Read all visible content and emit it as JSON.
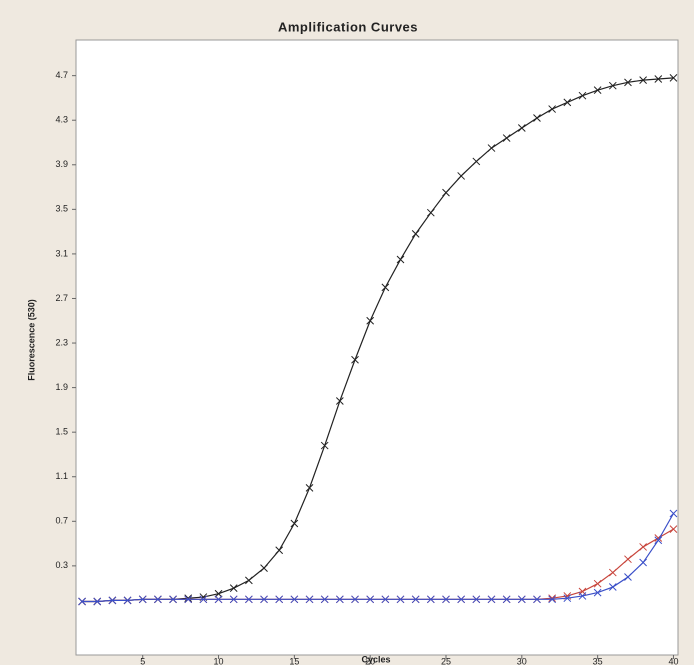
{
  "chart_data": {
    "type": "line",
    "title": "Amplification Curves",
    "x_label": "Cycles",
    "y_label": "Fluorescence (530)",
    "x": [
      1,
      2,
      3,
      4,
      5,
      6,
      7,
      8,
      9,
      10,
      11,
      12,
      13,
      14,
      15,
      16,
      17,
      18,
      19,
      20,
      21,
      22,
      23,
      24,
      25,
      26,
      27,
      28,
      29,
      30,
      31,
      32,
      33,
      34,
      35,
      36,
      37,
      38,
      39,
      40
    ],
    "series": [
      {
        "color": "#222222",
        "values": [
          -0.02,
          -0.02,
          -0.01,
          -0.01,
          0,
          0,
          0,
          0.01,
          0.02,
          0.05,
          0.1,
          0.17,
          0.28,
          0.44,
          0.68,
          1.0,
          1.38,
          1.78,
          2.15,
          2.5,
          2.8,
          3.05,
          3.28,
          3.47,
          3.65,
          3.8,
          3.93,
          4.05,
          4.14,
          4.23,
          4.32,
          4.4,
          4.46,
          4.52,
          4.57,
          4.61,
          4.64,
          4.66,
          4.67,
          4.68
        ]
      },
      {
        "color": "#c8453c",
        "values": [
          -0.02,
          -0.02,
          -0.01,
          -0.01,
          0,
          0,
          0,
          0,
          0,
          0,
          0,
          0,
          0,
          0,
          0,
          0,
          0,
          0,
          0,
          0,
          0,
          0,
          0,
          0,
          0,
          0,
          0,
          0,
          0,
          0,
          0,
          0.01,
          0.03,
          0.07,
          0.14,
          0.24,
          0.36,
          0.47,
          0.55,
          0.63
        ]
      },
      {
        "color": "#3a4fc8",
        "values": [
          -0.02,
          -0.02,
          -0.01,
          -0.01,
          0,
          0,
          0,
          0,
          0,
          0,
          0,
          0,
          0,
          0,
          0,
          0,
          0,
          0,
          0,
          0,
          0,
          0,
          0,
          0,
          0,
          0,
          0,
          0,
          0,
          0,
          0,
          0,
          0.01,
          0.03,
          0.06,
          0.11,
          0.2,
          0.33,
          0.53,
          0.77
        ]
      }
    ],
    "xlim": [
      0.6,
      40.3
    ],
    "ylim": [
      -0.5,
      5.02
    ],
    "xticks": [
      5,
      10,
      15,
      20,
      25,
      30,
      35,
      40
    ],
    "yticks": [
      0.3,
      0.7,
      1.1,
      1.5,
      1.9,
      2.3,
      2.7,
      3.1,
      3.5,
      3.9,
      4.3,
      4.7
    ],
    "grid": false
  }
}
